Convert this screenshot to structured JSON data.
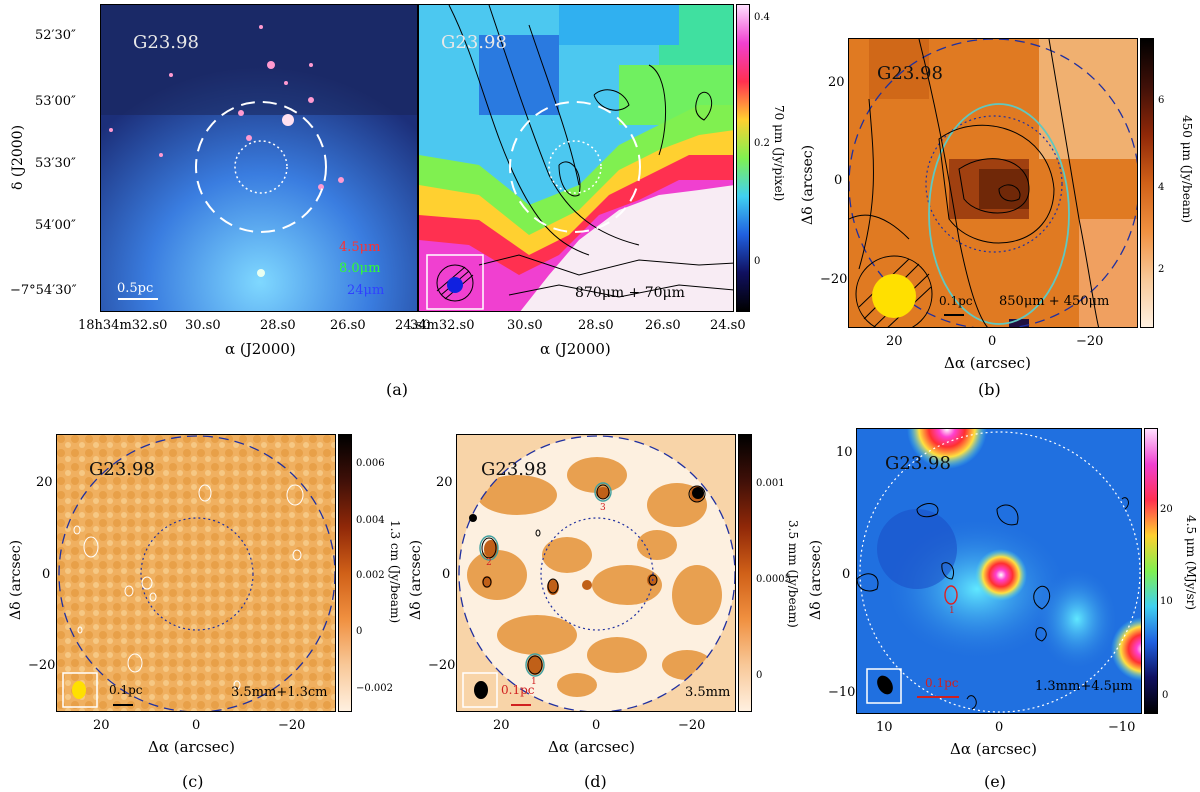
{
  "figure": {
    "captions": [
      "(a)",
      "(b)",
      "(c)",
      "(d)",
      "(e)"
    ]
  },
  "panel_a_left": {
    "title": "G23.98",
    "dec_label": "δ (J2000)",
    "ra_label": "α (J2000)",
    "dec_ticks": [
      "52′30″",
      "53′00″",
      "53′30″",
      "54′00″",
      "−7°54′30″"
    ],
    "ra_ticks": [
      "18h34m32.s0",
      "30.s0",
      "28.s0",
      "26.s0",
      "24.s0"
    ],
    "bands": [
      "4.5μm",
      "8.0μm",
      "24μm"
    ],
    "band_colors": [
      "#ff3030",
      "#30ff30",
      "#3040ff"
    ],
    "scalebar": "0.5pc"
  },
  "panel_a_right": {
    "title": "G23.98",
    "ra_label": "α (J2000)",
    "ra_ticks": [
      "34m32.s0",
      "30.s0",
      "28.s0",
      "26.s0",
      "24.s0"
    ],
    "legend": "870μm + 70μm",
    "cbar_label": "70 μm (Jy/pixel)",
    "cbar_ticks": [
      "0.4",
      "0.2",
      "0"
    ]
  },
  "panel_b": {
    "title": "G23.98",
    "xlabel": "Δα (arcsec)",
    "ylabel": "Δδ (arcsec)",
    "xticks": [
      "20",
      "0",
      "−20"
    ],
    "yticks": [
      "20",
      "0",
      "−20"
    ],
    "legend": "850μm + 450μm",
    "scalebar": "0.1pc",
    "cbar_label": "450 μm (Jy/beam)",
    "cbar_ticks": [
      "6",
      "4",
      "2"
    ]
  },
  "panel_c": {
    "title": "G23.98",
    "xlabel": "Δα (arcsec)",
    "ylabel": "Δδ (arcsec)",
    "xticks": [
      "20",
      "0",
      "−20"
    ],
    "yticks": [
      "20",
      "0",
      "−20"
    ],
    "legend": "3.5mm+1.3cm",
    "scalebar": "0.1pc",
    "cbar_label": "1.3 cm (Jy/beam)",
    "cbar_ticks": [
      "0.006",
      "0.004",
      "0.002",
      "0",
      "−0.002"
    ]
  },
  "panel_d": {
    "title": "G23.98",
    "xlabel": "Δα (arcsec)",
    "ylabel": "Δδ (arcsec)",
    "xticks": [
      "20",
      "0",
      "−20"
    ],
    "yticks": [
      "20",
      "0",
      "−20"
    ],
    "legend": "3.5mm",
    "scalebar": "0.1pc",
    "sources": [
      "1",
      "2",
      "3"
    ],
    "cbar_label": "3.5 mm (Jy/beam)",
    "cbar_ticks": [
      "0.001",
      "0.0005",
      "0"
    ]
  },
  "panel_e": {
    "title": "G23.98",
    "xlabel": "Δα (arcsec)",
    "ylabel": "Δδ (arcsec)",
    "xticks": [
      "10",
      "0",
      "−10"
    ],
    "yticks": [
      "10",
      "0",
      "−10"
    ],
    "legend": "1.3mm+4.5μm",
    "scalebar": "0.1pc",
    "source": "1",
    "cbar_label": "4.5 μm (MJy/sr)",
    "cbar_ticks": [
      "20",
      "10",
      "0"
    ]
  }
}
